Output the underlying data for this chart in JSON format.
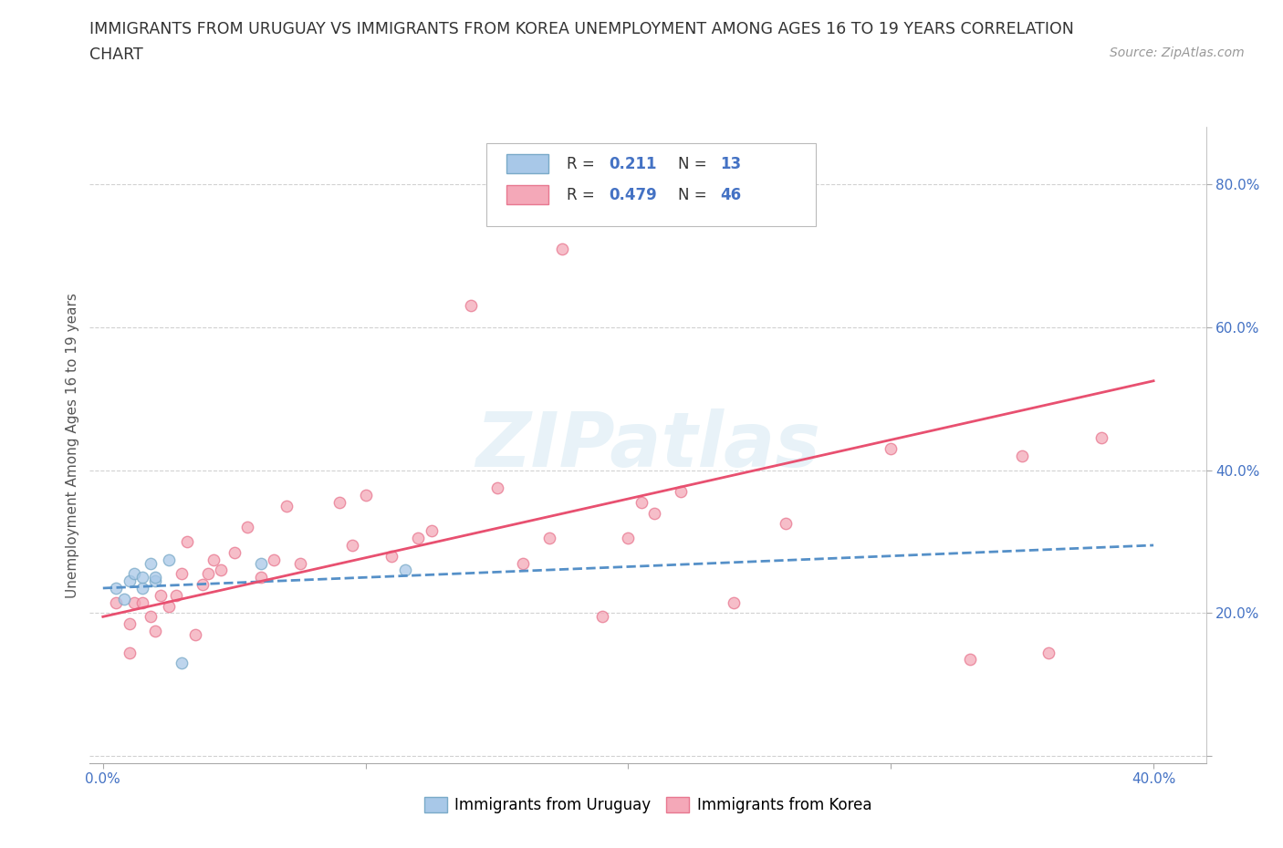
{
  "title_line1": "IMMIGRANTS FROM URUGUAY VS IMMIGRANTS FROM KOREA UNEMPLOYMENT AMONG AGES 16 TO 19 YEARS CORRELATION",
  "title_line2": "CHART",
  "source": "Source: ZipAtlas.com",
  "ylabel": "Unemployment Among Ages 16 to 19 years",
  "background_color": "#ffffff",
  "watermark_text": "ZIPatlas",
  "uruguay_color": "#a8c8e8",
  "korea_color": "#f4a8b8",
  "uruguay_edge_color": "#7aaac8",
  "korea_edge_color": "#e87890",
  "uruguay_line_color": "#5590c8",
  "korea_line_color": "#e85070",
  "tick_label_color": "#4472c4",
  "ylabel_color": "#555555",
  "title_color": "#333333",
  "source_color": "#999999",
  "grid_color": "#cccccc",
  "xlim": [
    -0.005,
    0.42
  ],
  "ylim": [
    -0.01,
    0.88
  ],
  "xticks": [
    0.0,
    0.1,
    0.2,
    0.3,
    0.4
  ],
  "yticks": [
    0.0,
    0.2,
    0.4,
    0.6,
    0.8
  ],
  "xticklabels": [
    "0.0%",
    "",
    "",
    "",
    "40.0%"
  ],
  "yticklabels": [
    "",
    "20.0%",
    "40.0%",
    "60.0%",
    "80.0%"
  ],
  "uruguay_scatter_x": [
    0.005,
    0.008,
    0.01,
    0.012,
    0.015,
    0.015,
    0.018,
    0.02,
    0.02,
    0.025,
    0.03,
    0.06,
    0.115
  ],
  "uruguay_scatter_y": [
    0.235,
    0.22,
    0.245,
    0.255,
    0.235,
    0.25,
    0.27,
    0.245,
    0.25,
    0.275,
    0.13,
    0.27,
    0.26
  ],
  "korea_scatter_x": [
    0.005,
    0.01,
    0.01,
    0.012,
    0.015,
    0.018,
    0.02,
    0.022,
    0.025,
    0.028,
    0.03,
    0.032,
    0.035,
    0.038,
    0.04,
    0.042,
    0.045,
    0.05,
    0.055,
    0.06,
    0.065,
    0.07,
    0.075,
    0.09,
    0.095,
    0.1,
    0.11,
    0.12,
    0.125,
    0.14,
    0.15,
    0.16,
    0.17,
    0.175,
    0.19,
    0.2,
    0.205,
    0.21,
    0.22,
    0.24,
    0.26,
    0.3,
    0.33,
    0.35,
    0.36,
    0.38
  ],
  "korea_scatter_y": [
    0.215,
    0.145,
    0.185,
    0.215,
    0.215,
    0.195,
    0.175,
    0.225,
    0.21,
    0.225,
    0.255,
    0.3,
    0.17,
    0.24,
    0.255,
    0.275,
    0.26,
    0.285,
    0.32,
    0.25,
    0.275,
    0.35,
    0.27,
    0.355,
    0.295,
    0.365,
    0.28,
    0.305,
    0.315,
    0.63,
    0.375,
    0.27,
    0.305,
    0.71,
    0.195,
    0.305,
    0.355,
    0.34,
    0.37,
    0.215,
    0.325,
    0.43,
    0.135,
    0.42,
    0.145,
    0.445
  ],
  "uruguay_trendline_x": [
    0.0,
    0.4
  ],
  "uruguay_trendline_y": [
    0.235,
    0.295
  ],
  "korea_trendline_x": [
    0.0,
    0.4
  ],
  "korea_trendline_y": [
    0.195,
    0.525
  ]
}
